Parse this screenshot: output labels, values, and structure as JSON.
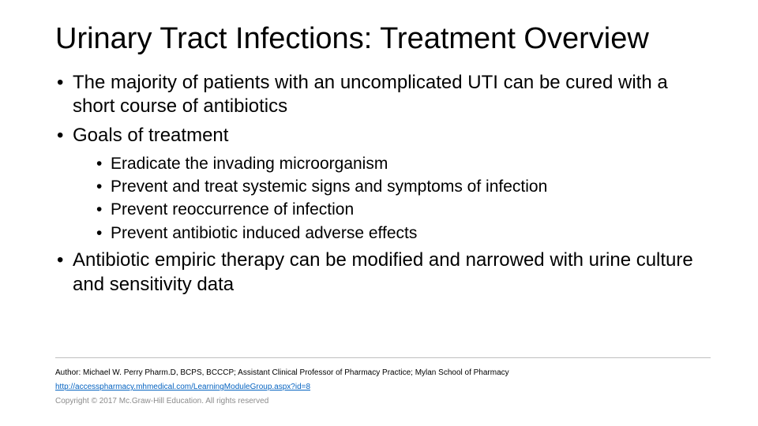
{
  "title": "Urinary Tract Infections: Treatment Overview",
  "bullets": {
    "b1": "The majority of patients with an uncomplicated UTI can be cured with a short course of antibiotics",
    "b2": "Goals of treatment",
    "b2_sub": {
      "s1": "Eradicate the invading microorganism",
      "s2": "Prevent and treat systemic signs and symptoms of infection",
      "s3": "Prevent reoccurrence of infection",
      "s4": "Prevent antibiotic induced adverse effects"
    },
    "b3": "Antibiotic empiric therapy can be modified and narrowed with urine  culture and sensitivity data"
  },
  "footer": {
    "author": "Author: Michael W. Perry Pharm.D, BCPS, BCCCP; Assistant Clinical Professor of Pharmacy Practice; Mylan School of Pharmacy",
    "link": "http://accesspharmacy.mhmedical.com/LearningModuleGroup.aspx?id=8",
    "copyright": "Copyright © 2017 Mc.Graw-Hill Education. All rights reserved"
  },
  "colors": {
    "text": "#000000",
    "link": "#0563c1",
    "copyright": "#8c8c8c",
    "divider": "#bfbfbf",
    "background": "#ffffff"
  },
  "fontsizes": {
    "title": 38,
    "l1": 24,
    "l2": 21,
    "footer": 10
  }
}
